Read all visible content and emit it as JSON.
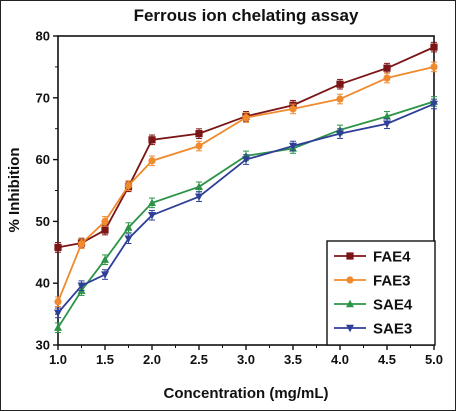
{
  "chart_data": {
    "type": "line",
    "title": "Ferrous ion chelating assay",
    "xlabel": "Concentration (mg/mL)",
    "ylabel": "% Inhibition",
    "xlim": [
      1.0,
      5.0
    ],
    "ylim": [
      30,
      80
    ],
    "x_ticks": [
      "1.0",
      "1.5",
      "2.0",
      "2.5",
      "3.0",
      "3.5",
      "4.0",
      "4.5",
      "5.0"
    ],
    "y_ticks": [
      "30",
      "40",
      "50",
      "60",
      "70",
      "80"
    ],
    "legend_position": "bottom-right",
    "x": [
      1.0,
      1.25,
      1.5,
      1.75,
      2.0,
      2.5,
      3.0,
      3.5,
      4.0,
      4.5,
      5.0
    ],
    "series": [
      {
        "name": "FAE4",
        "color": "#7b1516",
        "marker": "square",
        "values": [
          45.8,
          46.5,
          48.6,
          55.6,
          63.2,
          64.2,
          67.0,
          68.8,
          72.2,
          74.8,
          78.2
        ]
      },
      {
        "name": "FAE3",
        "color": "#f08a2e",
        "marker": "circle",
        "values": [
          37.0,
          46.4,
          50.0,
          55.8,
          59.8,
          62.2,
          66.8,
          68.2,
          69.8,
          73.2,
          75.0
        ]
      },
      {
        "name": "SAE4",
        "color": "#2b9446",
        "marker": "triangle-up",
        "values": [
          32.8,
          38.8,
          43.8,
          49.0,
          53.0,
          55.6,
          60.6,
          61.8,
          64.8,
          67.0,
          69.4
        ]
      },
      {
        "name": "SAE3",
        "color": "#2f3f97",
        "marker": "triangle-down",
        "values": [
          35.2,
          39.6,
          41.4,
          47.2,
          51.0,
          54.0,
          60.0,
          62.2,
          64.2,
          65.8,
          69.0
        ]
      }
    ]
  }
}
